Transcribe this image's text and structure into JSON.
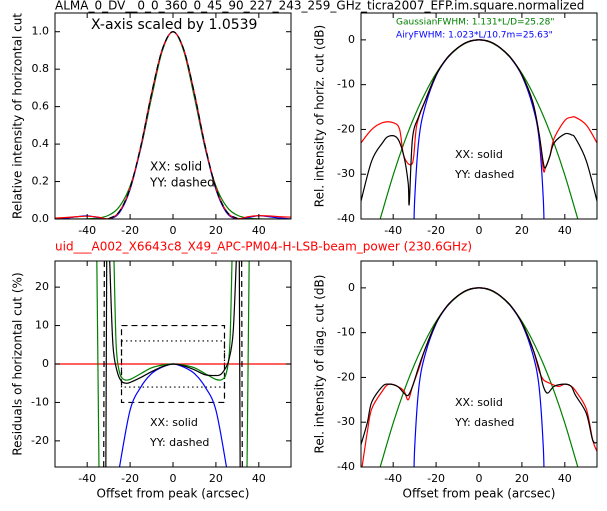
{
  "title": "ALMA_0_DV__0_0_360_0_45_90_227_243_259_GHz_ticra2007_EFP.im.square.normalized",
  "subtitle": "uid___A002_X6643c8_X49_APC-PM04-H-LSB-beam_power (230.6GHz)",
  "chart_data": [
    {
      "type": "line",
      "ylabel": "Relative intensity of horizontal cut",
      "xlim": [
        -55,
        55
      ],
      "ylim": [
        0,
        1.1
      ],
      "xticks": [
        -40,
        -20,
        0,
        20,
        40
      ],
      "yticks": [
        {
          "value": 0,
          "label": "0.0"
        },
        {
          "value": 0.2,
          "label": "0.2"
        },
        {
          "value": 0.4,
          "label": "0.4"
        },
        {
          "value": 0.6,
          "label": "0.6"
        },
        {
          "value": 0.8,
          "label": "0.8"
        },
        {
          "value": 1,
          "label": "1.0"
        }
      ],
      "annotations": [
        {
          "text": "X-axis scaled by 1.0539",
          "color": "#000000"
        },
        {
          "text": "XX: solid",
          "color": "#000000"
        },
        {
          "text": "YY: dashed",
          "color": "#000000"
        }
      ],
      "series": [
        {
          "color": "#008000",
          "dash": "solid",
          "x": [
            -55,
            -50,
            -45,
            -40,
            -35,
            -30,
            -25,
            -20,
            -15,
            -10,
            -5,
            0,
            5,
            10,
            15,
            20,
            25,
            30,
            35,
            40,
            45,
            50,
            55
          ],
          "values": [
            0,
            0,
            0.0002,
            0.001,
            0.005,
            0.02,
            0.066,
            0.176,
            0.377,
            0.648,
            0.897,
            1,
            0.897,
            0.648,
            0.377,
            0.176,
            0.066,
            0.02,
            0.005,
            0.001,
            0.0002,
            0,
            0
          ]
        },
        {
          "color": "#0000ff",
          "dash": "solid",
          "x": [
            -55,
            -50,
            -45,
            -40,
            -35,
            -30,
            -25,
            -20,
            -15,
            -10,
            -5,
            0,
            5,
            10,
            15,
            20,
            25,
            30,
            35,
            40,
            45,
            50,
            55
          ],
          "values": [
            0,
            0.0045,
            0.012,
            0.017,
            0.0086,
            0.0003,
            0.034,
            0.158,
            0.383,
            0.667,
            0.906,
            1,
            0.906,
            0.667,
            0.383,
            0.158,
            0.034,
            0.0003,
            0.0086,
            0.017,
            0.012,
            0.0045,
            0
          ]
        },
        {
          "color": "#ff0000",
          "dash": "solid",
          "x": [
            -55,
            -50,
            -45,
            -40,
            -35,
            -30,
            -25,
            -20,
            -15,
            -10,
            -5,
            0,
            5,
            10,
            15,
            20,
            25,
            30,
            35,
            40,
            45,
            50,
            55
          ],
          "values": [
            0.005,
            0.008,
            0.012,
            0.015,
            0.01,
            0.002,
            0.04,
            0.165,
            0.39,
            0.67,
            0.905,
            1,
            0.905,
            0.67,
            0.39,
            0.165,
            0.04,
            0.003,
            0.012,
            0.018,
            0.016,
            0.012,
            0.01
          ]
        },
        {
          "color": "#000000",
          "dash": "dashed",
          "x": [
            -30,
            -25,
            -20,
            -15,
            -10,
            -5,
            0,
            5,
            10,
            15,
            20,
            25,
            30
          ],
          "values": [
            0.002,
            0.04,
            0.166,
            0.39,
            0.67,
            0.905,
            1,
            0.905,
            0.67,
            0.39,
            0.166,
            0.04,
            0.003
          ]
        }
      ]
    },
    {
      "type": "line",
      "ylabel": "Rel. intensity of horiz. cut (dB)",
      "xlim": [
        -55,
        55
      ],
      "ylim": [
        -40,
        6
      ],
      "xticks": [
        -40,
        -20,
        0,
        20,
        40
      ],
      "yticks": [
        -40,
        -30,
        -20,
        -10,
        0
      ],
      "annotations": [
        {
          "text": "GaussianFWHM: 1.131*L/D=25.28\"",
          "color": "#008000"
        },
        {
          "text": "AiryFWHM: 1.023*L/10.7m=25.63\"",
          "color": "#0000ff"
        },
        {
          "text": "XX: solid",
          "color": "#000000"
        },
        {
          "text": "YY: dashed",
          "color": "#000000"
        }
      ],
      "series": [
        {
          "color": "#008000",
          "dash": "solid",
          "x": [
            -46,
            -40,
            -35,
            -30,
            -25,
            -20,
            -15,
            -10,
            -5,
            0,
            5,
            10,
            15,
            20,
            25,
            30,
            35,
            40,
            46
          ],
          "values": [
            -39.9,
            -30.2,
            -23.1,
            -17,
            -11.8,
            -7.5,
            -4.2,
            -1.9,
            -0.5,
            0,
            -0.5,
            -1.9,
            -4.2,
            -7.5,
            -11.8,
            -17,
            -23.1,
            -30.2,
            -39.9
          ]
        },
        {
          "color": "#0000ff",
          "dash": "solid",
          "x": [
            -30.4,
            -30,
            -28,
            -25,
            -20,
            -15,
            -10,
            -5,
            0,
            5,
            10,
            15,
            20,
            25,
            28,
            30,
            30.4
          ],
          "values": [
            -45.5,
            -35.9,
            -22.1,
            -14.7,
            -8,
            -4.2,
            -1.8,
            -0.4,
            0,
            -0.4,
            -1.8,
            -4.2,
            -8,
            -14.7,
            -22.1,
            -35.9,
            -45.5
          ]
        },
        {
          "color": "#ff0000",
          "dash": "solid",
          "x": [
            -55,
            -50,
            -45,
            -40,
            -37,
            -35,
            -31,
            -29,
            -25,
            -20,
            -15,
            -10,
            -5,
            0,
            5,
            10,
            15,
            20,
            25,
            28,
            30,
            31,
            33,
            35,
            40,
            43,
            45,
            50,
            55
          ],
          "values": [
            -23,
            -20,
            -18.5,
            -18.5,
            -20,
            -26,
            -27.5,
            -19,
            -13.5,
            -7.8,
            -4.1,
            -1.8,
            -0.4,
            0,
            -0.4,
            -1.8,
            -4.1,
            -7.8,
            -13.8,
            -21,
            -29,
            -28.5,
            -26,
            -22,
            -18,
            -17.3,
            -17.3,
            -19,
            -23
          ]
        },
        {
          "color": "#000000",
          "dash": "solid",
          "x": [
            -55,
            -50,
            -45,
            -42,
            -38,
            -35,
            -33,
            -32.5,
            -31,
            -28,
            -25,
            -20,
            -15,
            -10,
            -5,
            0,
            5,
            10,
            15,
            20,
            25,
            28,
            30,
            31,
            33,
            35,
            40,
            43,
            45,
            50,
            55
          ],
          "values": [
            -36,
            -27,
            -23,
            -21.5,
            -22,
            -26,
            -32,
            -36.5,
            -22,
            -17,
            -13.5,
            -7.8,
            -4.1,
            -1.8,
            -0.4,
            0,
            -0.4,
            -1.8,
            -4.1,
            -7.8,
            -13.8,
            -21,
            -27.5,
            -28.5,
            -26,
            -23,
            -21,
            -21.2,
            -22,
            -27,
            -36
          ]
        }
      ]
    },
    {
      "type": "line",
      "ylabel": "Residuals of horizontal cut (%)",
      "xlabel": "Offset from peak (arcsec)",
      "xlim": [
        -55,
        55
      ],
      "ylim": [
        -26.8,
        26.8
      ],
      "xticks": [
        -40,
        -20,
        0,
        20,
        40
      ],
      "yticks": [
        -20,
        -10,
        0,
        10,
        20
      ],
      "annotations": [
        {
          "text": "XX: solid",
          "color": "#000000"
        },
        {
          "text": "YY: dashed",
          "color": "#000000"
        }
      ],
      "boxes": [
        {
          "x": [
            -24,
            24
          ],
          "y": [
            -10,
            10
          ],
          "dash": "dashed"
        },
        {
          "x": [
            -24,
            24
          ],
          "y": [
            -6,
            6
          ],
          "dash": "dotted"
        }
      ],
      "series": [
        {
          "color": "#ff0000",
          "dash": "solid",
          "x": [
            -55,
            55
          ],
          "values": [
            0,
            0
          ]
        },
        {
          "color": "#0000ff",
          "dash": "solid",
          "x": [
            -25,
            -20,
            -15,
            -10,
            -5,
            0,
            5,
            10,
            15,
            20,
            25
          ],
          "values": [
            -27,
            -12,
            -6,
            -2.5,
            -0.8,
            0,
            -0.8,
            -2.5,
            -6,
            -12,
            -27
          ]
        },
        {
          "color": "#008000",
          "dash": "solid",
          "x": [
            -35.5,
            -34.5,
            null,
            -27.5,
            -26.5,
            -25,
            -23,
            -20,
            -15,
            -10,
            -5,
            0,
            5,
            10,
            15,
            20,
            23,
            25,
            26.5,
            27.5,
            null,
            34.5,
            35.5
          ],
          "values": [
            26.8,
            -26.8,
            null,
            26.8,
            5,
            -2,
            -4,
            -4,
            -2.5,
            -1,
            -0.3,
            0,
            -0.3,
            -1,
            -2.5,
            -4,
            -4,
            -2,
            5,
            26.8,
            null,
            -26.8,
            26.8
          ]
        },
        {
          "color": "#000000",
          "dash": "solid",
          "x": [
            -31.3,
            -30.9,
            null,
            -29.5,
            -28,
            -26,
            -24,
            -22,
            -20,
            -15,
            -10,
            -5,
            0,
            5,
            10,
            15,
            20,
            22,
            24,
            26,
            28,
            29.5,
            null,
            30.9,
            31.3
          ],
          "values": [
            -26.8,
            26.8,
            null,
            26.8,
            5,
            -2,
            -4.5,
            -5,
            -4.8,
            -3.5,
            -2,
            -0.7,
            0,
            -0.5,
            -1.5,
            -2.8,
            -3,
            -2.8,
            -1.5,
            1,
            8,
            26.8,
            null,
            26.8,
            -26.8
          ]
        },
        {
          "color": "#000000",
          "dash": "dashed",
          "x": [
            -32.3,
            -32,
            null,
            32,
            32.3
          ],
          "values": [
            -26.8,
            26.8,
            null,
            26.8,
            -26.8
          ]
        }
      ]
    },
    {
      "type": "line",
      "ylabel": "Rel. intensity of diag. cut (dB)",
      "xlabel": "Offset from peak (arcsec)",
      "xlim": [
        -55,
        55
      ],
      "ylim": [
        -40,
        6
      ],
      "xticks": [
        -40,
        -20,
        0,
        20,
        40
      ],
      "yticks": [
        -40,
        -30,
        -20,
        -10,
        0
      ],
      "annotations": [
        {
          "text": "XX: solid",
          "color": "#000000"
        },
        {
          "text": "YY: dashed",
          "color": "#000000"
        }
      ],
      "series": [
        {
          "color": "#008000",
          "dash": "solid",
          "x": [
            -46,
            -40,
            -35,
            -30,
            -25,
            -20,
            -15,
            -10,
            -5,
            0,
            5,
            10,
            15,
            20,
            25,
            30,
            35,
            40,
            46
          ],
          "values": [
            -39.9,
            -30.2,
            -23.1,
            -17,
            -11.8,
            -7.5,
            -4.2,
            -1.9,
            -0.5,
            0,
            -0.5,
            -1.9,
            -4.2,
            -7.5,
            -11.8,
            -17,
            -23.1,
            -30.2,
            -39.9
          ]
        },
        {
          "color": "#0000ff",
          "dash": "solid",
          "x": [
            -30.4,
            -30,
            -28,
            -25,
            -20,
            -15,
            -10,
            -5,
            0,
            5,
            10,
            15,
            20,
            25,
            28,
            30,
            30.4
          ],
          "values": [
            -45.5,
            -35.9,
            -22.1,
            -14.7,
            -8,
            -4.2,
            -1.8,
            -0.4,
            0,
            -0.4,
            -1.8,
            -4.2,
            -8,
            -14.7,
            -22.1,
            -35.9,
            -45.5
          ]
        },
        {
          "color": "#ff0000",
          "dash": "solid",
          "x": [
            -54.5,
            -52,
            -50,
            -45,
            -42,
            -38,
            -35,
            -33,
            -31,
            -28,
            -25,
            -20,
            -15,
            -10,
            -5,
            0,
            5,
            10,
            15,
            20,
            25,
            28,
            30,
            33,
            37,
            40,
            43,
            45,
            50,
            53,
            55
          ],
          "values": [
            -40,
            -32,
            -27,
            -23,
            -21.5,
            -22,
            -23,
            -25,
            -22,
            -18,
            -13.5,
            -7.8,
            -4.1,
            -1.8,
            -0.4,
            0,
            -0.4,
            -1.8,
            -4.1,
            -7.8,
            -13.5,
            -18.5,
            -20.5,
            -21.3,
            -22,
            -21.5,
            -22,
            -23,
            -27,
            -34,
            -36.5
          ]
        },
        {
          "color": "#000000",
          "dash": "solid",
          "x": [
            -55,
            -52,
            -50,
            -45,
            -42,
            -38,
            -35,
            -33,
            -31,
            -28,
            -25,
            -20,
            -15,
            -10,
            -5,
            0,
            5,
            10,
            15,
            20,
            25,
            28,
            30,
            32,
            35,
            40,
            43,
            45,
            50,
            53,
            55
          ],
          "values": [
            -35,
            -30,
            -25.5,
            -22,
            -21.5,
            -22,
            -23.5,
            -24,
            -22,
            -17.5,
            -13.5,
            -7.8,
            -4.1,
            -1.8,
            -0.4,
            0,
            -0.4,
            -1.8,
            -4.1,
            -7.8,
            -13.5,
            -18,
            -22,
            -23.5,
            -22,
            -21.5,
            -22,
            -24,
            -28,
            -34,
            -34.5
          ]
        }
      ]
    }
  ]
}
